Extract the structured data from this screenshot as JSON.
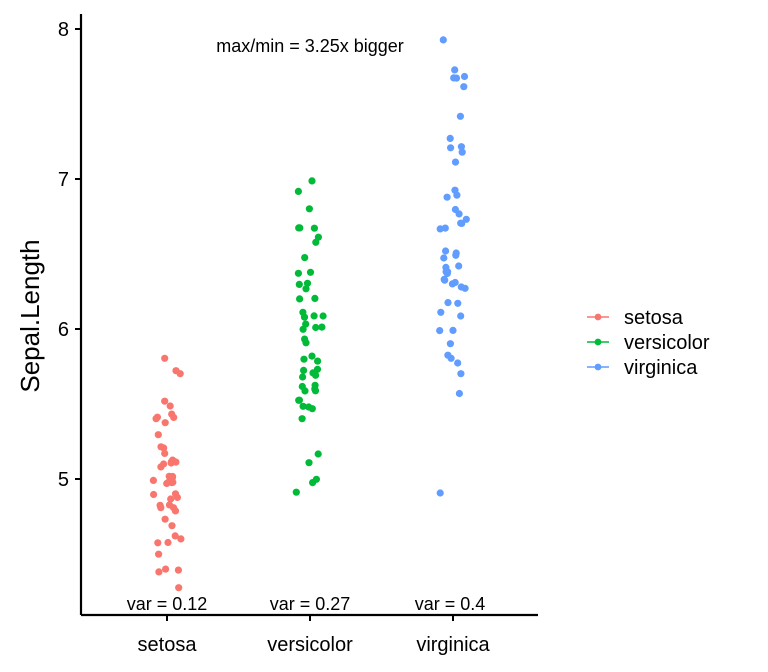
{
  "chart_data": {
    "type": "scatter",
    "subtype": "jittered strip chart",
    "xlabel": "",
    "ylabel": "Sepal.Length",
    "categories": [
      "setosa",
      "versicolor",
      "virginica"
    ],
    "ylim": [
      4.2,
      8.1
    ],
    "yticks": [
      5,
      6,
      7,
      8
    ],
    "grid": false,
    "legend": {
      "placement": "right",
      "entries": [
        "setosa",
        "versicolor",
        "virginica"
      ]
    },
    "annotation": "max/min = 3.25x bigger",
    "variance_labels": [
      "var = 0.12",
      "var = 0.27",
      "var = 0.4"
    ],
    "series": [
      {
        "name": "setosa",
        "color": "#F8766D",
        "values": [
          5.1,
          4.9,
          4.7,
          4.6,
          5.0,
          5.4,
          4.6,
          5.0,
          4.4,
          4.9,
          5.4,
          4.8,
          4.8,
          4.3,
          5.8,
          5.7,
          5.4,
          5.1,
          5.7,
          5.1,
          5.4,
          5.1,
          4.6,
          5.1,
          4.8,
          5.0,
          5.0,
          5.2,
          5.2,
          4.7,
          4.8,
          5.4,
          5.2,
          5.5,
          4.9,
          5.0,
          5.5,
          4.9,
          4.4,
          5.1,
          5.0,
          4.5,
          4.4,
          5.0,
          5.1,
          4.8,
          5.1,
          4.6,
          5.3,
          5.0
        ]
      },
      {
        "name": "versicolor",
        "color": "#00BA38",
        "values": [
          7.0,
          6.4,
          6.9,
          5.5,
          6.5,
          5.7,
          6.3,
          4.9,
          6.6,
          5.2,
          5.0,
          5.9,
          6.0,
          6.1,
          5.6,
          6.7,
          5.6,
          5.8,
          6.2,
          5.6,
          5.9,
          6.1,
          6.3,
          6.1,
          6.4,
          6.6,
          6.8,
          6.7,
          6.0,
          5.7,
          5.5,
          5.5,
          5.8,
          6.0,
          5.4,
          6.0,
          6.7,
          6.3,
          5.6,
          5.5,
          5.5,
          6.1,
          5.8,
          5.0,
          5.6,
          5.7,
          5.7,
          6.2,
          5.1,
          5.7
        ]
      },
      {
        "name": "virginica",
        "color": "#619CFF",
        "values": [
          6.3,
          5.8,
          7.1,
          6.3,
          6.5,
          7.6,
          4.9,
          7.3,
          6.7,
          7.2,
          6.5,
          6.4,
          6.8,
          5.7,
          5.8,
          6.4,
          6.5,
          7.7,
          7.7,
          6.0,
          6.9,
          5.6,
          7.7,
          6.3,
          6.7,
          7.2,
          6.2,
          6.1,
          6.4,
          7.2,
          7.4,
          7.9,
          6.4,
          6.3,
          6.1,
          7.7,
          6.3,
          6.4,
          6.0,
          6.9,
          6.7,
          6.9,
          5.8,
          6.8,
          6.7,
          6.7,
          6.3,
          6.5,
          6.2,
          5.9
        ]
      }
    ]
  }
}
